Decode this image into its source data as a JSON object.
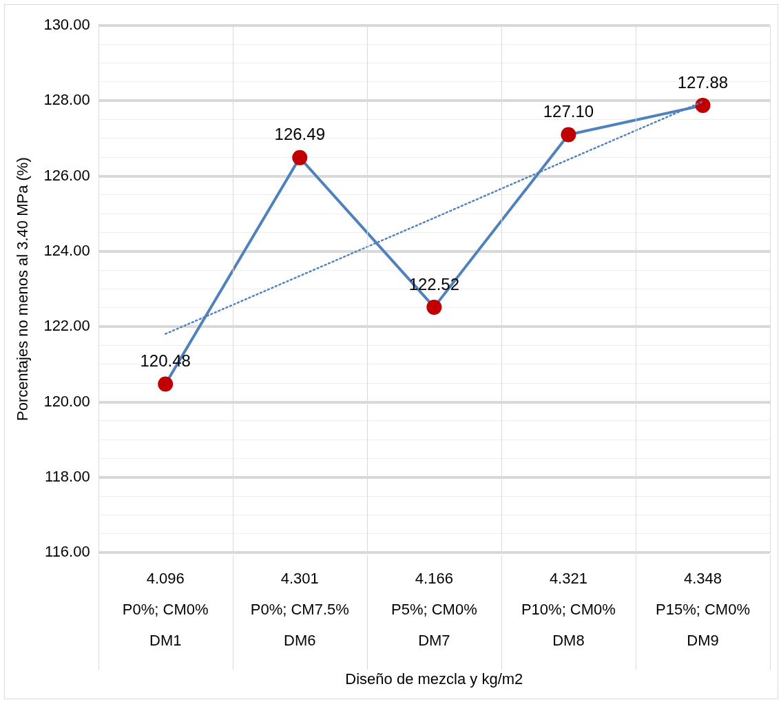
{
  "chart_data": {
    "type": "line",
    "xlabel": "Diseño de mezcla y kg/m2",
    "ylabel": "Porcentajes no menos al 3.40 MPa (%)",
    "categories": [
      "4.096\nP0%; CM0%\nDM1",
      "4.301\nP0%; CM7.5%\nDM6",
      "4.166\nP5%; CM0%\nDM7",
      "4.321\nP10%; CM0%\nDM8",
      "4.348\nP15%; CM0%\nDM9"
    ],
    "series": [
      {
        "color": "#4f81bd",
        "marker": "circle",
        "colors": [
          "#c00000",
          "#c00000",
          "#c00000",
          "#c00000",
          "#c00000"
        ],
        "values": [
          120.48,
          126.49,
          122.52,
          127.1,
          127.88
        ],
        "value_labels": [
          "120.48",
          "126.49",
          "122.52",
          "127.10",
          "127.88"
        ]
      },
      {
        "type": "line",
        "color": "#4f81bd",
        "marker": "none",
        "line_style": "dotted",
        "values": [
          121.81,
          123.35,
          124.89,
          126.44,
          127.98
        ]
      }
    ],
    "ylim": [
      116,
      130
    ],
    "yticks": [
      {
        "value": 116,
        "label": "116.00"
      },
      {
        "value": 116.5,
        "label": null
      },
      {
        "value": 117,
        "label": null
      },
      {
        "value": 117.5,
        "label": null
      },
      {
        "value": 118,
        "label": "118.00"
      },
      {
        "value": 118.5,
        "label": null
      },
      {
        "value": 119,
        "label": null
      },
      {
        "value": 119.5,
        "label": null
      },
      {
        "value": 120,
        "label": "120.00"
      },
      {
        "value": 120.5,
        "label": null
      },
      {
        "value": 121,
        "label": null
      },
      {
        "value": 121.5,
        "label": null
      },
      {
        "value": 122,
        "label": "122.00"
      },
      {
        "value": 122.5,
        "label": null
      },
      {
        "value": 123,
        "label": null
      },
      {
        "value": 123.5,
        "label": null
      },
      {
        "value": 124,
        "label": "124.00"
      },
      {
        "value": 124.5,
        "label": null
      },
      {
        "value": 125,
        "label": null
      },
      {
        "value": 125.5,
        "label": null
      },
      {
        "value": 126,
        "label": "126.00"
      },
      {
        "value": 126.5,
        "label": null
      },
      {
        "value": 127,
        "label": null
      },
      {
        "value": 127.5,
        "label": null
      },
      {
        "value": 128,
        "label": "128.00"
      },
      {
        "value": 128.5,
        "label": null
      },
      {
        "value": 129,
        "label": null
      },
      {
        "value": 129.5,
        "label": null
      },
      {
        "value": 130,
        "label": "130.00"
      }
    ],
    "grid": true,
    "legend": false
  }
}
